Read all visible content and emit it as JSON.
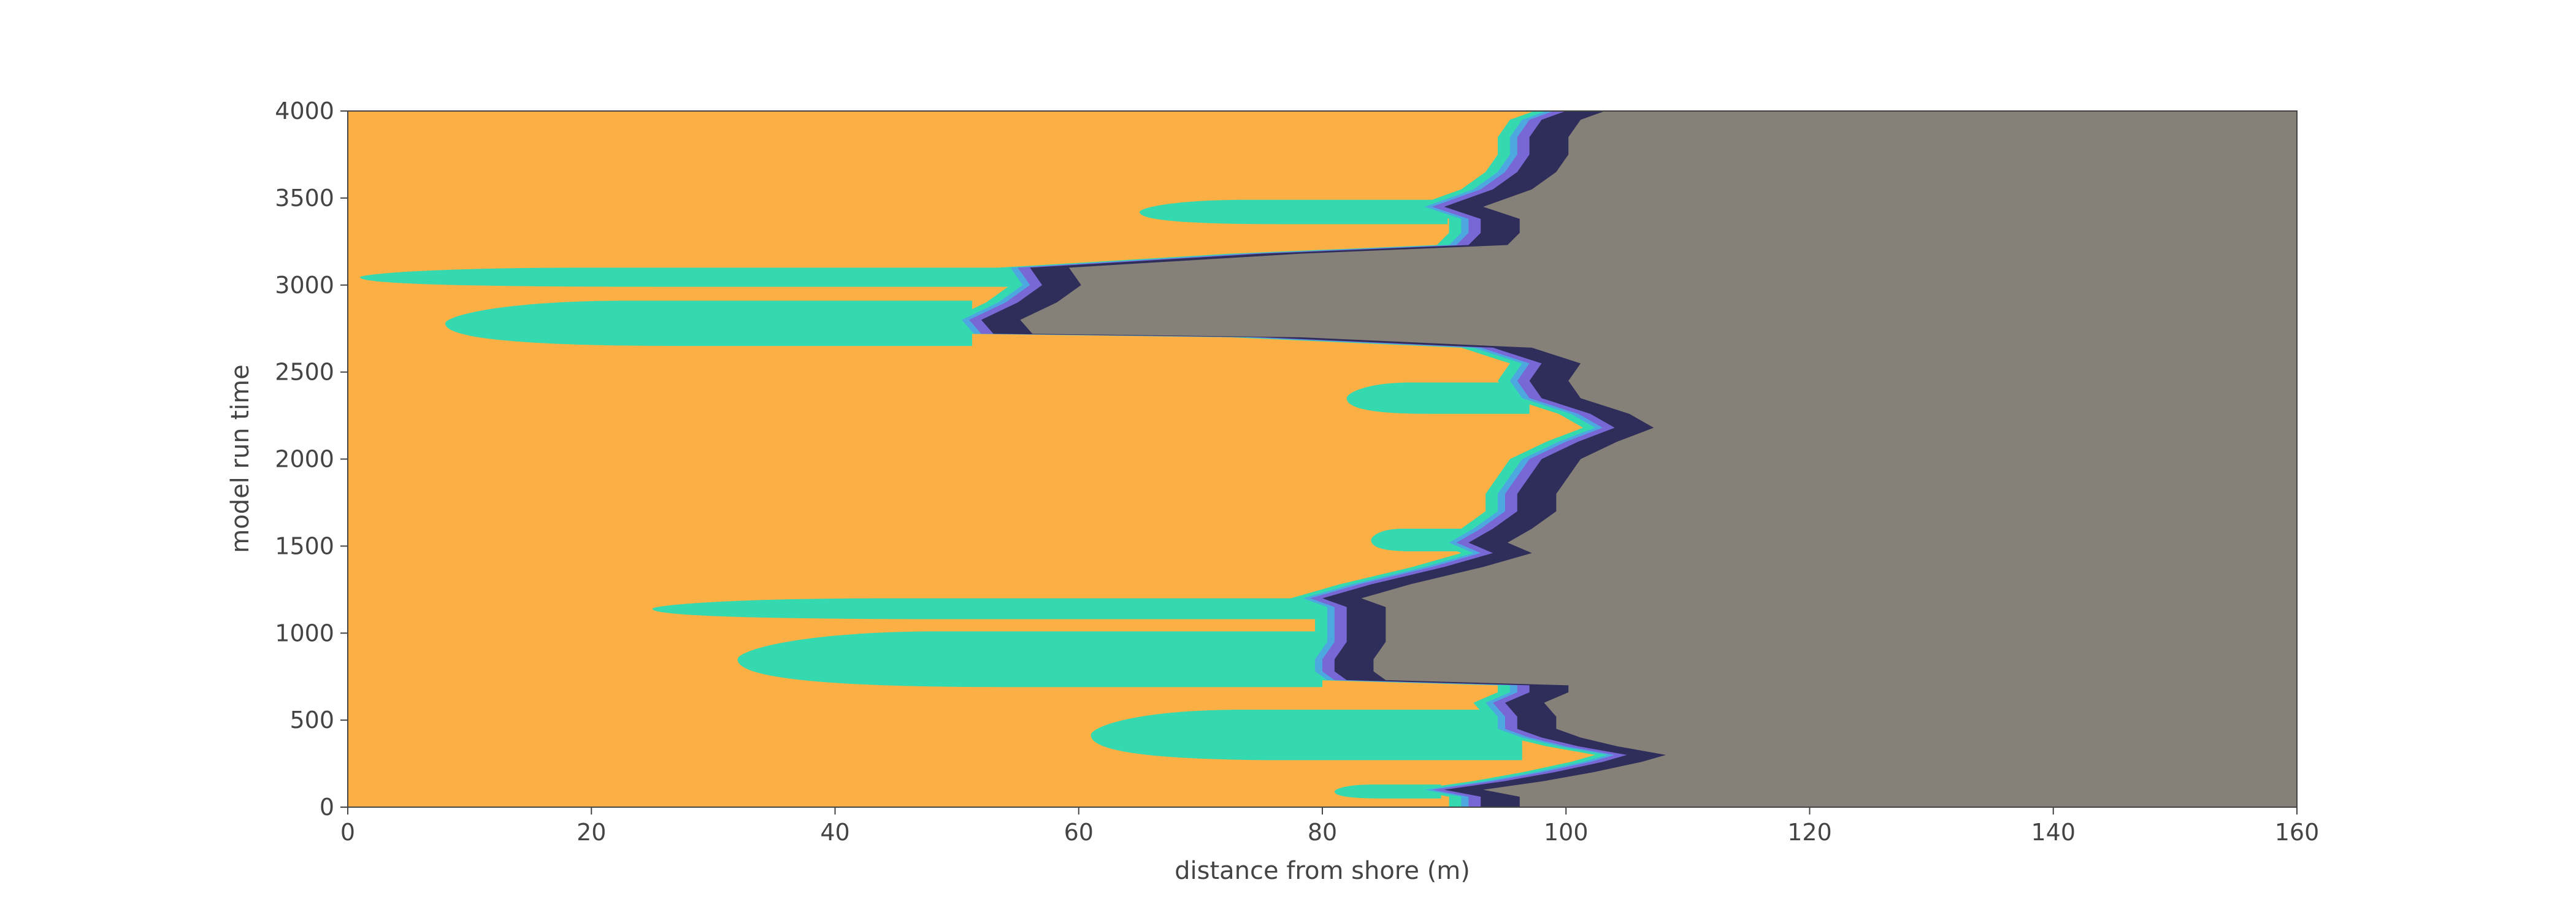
{
  "chart_data": {
    "type": "area",
    "title": "",
    "xlabel": "distance from shore (m)",
    "ylabel": "model run time",
    "xlim": [
      0,
      160
    ],
    "ylim": [
      0,
      4000
    ],
    "xticks": [
      "0",
      "20",
      "40",
      "60",
      "80",
      "100",
      "120",
      "140",
      "160"
    ],
    "yticks": [
      "0",
      "500",
      "1000",
      "1500",
      "2000",
      "2500",
      "3000",
      "3500",
      "4000"
    ],
    "grid": false,
    "legend": "none",
    "colors": {
      "background_orange": "#fcaf45",
      "land_grey": "#858078",
      "dark_band": "#2f2d5a",
      "purple_band": "#7768d6",
      "blue_band": "#4ea8e0",
      "teal_band": "#34d9b0",
      "axis": "#444444"
    },
    "series": [
      {
        "values": [
          [
            0,
            93
          ],
          [
            60,
            93
          ],
          [
            100,
            90
          ],
          [
            150,
            95
          ],
          [
            200,
            99
          ],
          [
            260,
            103
          ],
          [
            300,
            105
          ],
          [
            350,
            101
          ],
          [
            400,
            98
          ],
          [
            450,
            96
          ],
          [
            520,
            96
          ],
          [
            600,
            95
          ],
          [
            660,
            97
          ],
          [
            700,
            97
          ],
          [
            730,
            82
          ],
          [
            780,
            81
          ],
          [
            850,
            81
          ],
          [
            950,
            82
          ],
          [
            1050,
            82
          ],
          [
            1150,
            82
          ],
          [
            1200,
            80
          ],
          [
            1280,
            84
          ],
          [
            1380,
            90
          ],
          [
            1460,
            94
          ],
          [
            1520,
            92
          ],
          [
            1600,
            94
          ],
          [
            1700,
            96
          ],
          [
            1800,
            96
          ],
          [
            1900,
            97
          ],
          [
            2000,
            98
          ],
          [
            2100,
            101
          ],
          [
            2180,
            104
          ],
          [
            2260,
            102
          ],
          [
            2350,
            98
          ],
          [
            2450,
            97
          ],
          [
            2550,
            98
          ],
          [
            2640,
            94
          ],
          [
            2700,
            75
          ],
          [
            2720,
            53
          ],
          [
            2800,
            52
          ],
          [
            2900,
            55
          ],
          [
            3000,
            57
          ],
          [
            3100,
            56
          ],
          [
            3180,
            75
          ],
          [
            3230,
            92
          ],
          [
            3300,
            93
          ],
          [
            3380,
            93
          ],
          [
            3450,
            90
          ],
          [
            3550,
            94
          ],
          [
            3650,
            96
          ],
          [
            3750,
            97
          ],
          [
            3850,
            97
          ],
          [
            3950,
            98
          ],
          [
            4000,
            100
          ]
        ]
      }
    ],
    "tongues": [
      {
        "y_bottom": 50,
        "y_top": 130,
        "x_tip": 81
      },
      {
        "y_bottom": 270,
        "y_top": 560,
        "x_tip": 61
      },
      {
        "y_bottom": 690,
        "y_top": 1010,
        "x_tip": 32
      },
      {
        "y_bottom": 1080,
        "y_top": 1200,
        "x_tip": 25
      },
      {
        "y_bottom": 1470,
        "y_top": 1600,
        "x_tip": 84
      },
      {
        "y_bottom": 2260,
        "y_top": 2440,
        "x_tip": 82
      },
      {
        "y_bottom": 2650,
        "y_top": 2910,
        "x_tip": 8
      },
      {
        "y_bottom": 2990,
        "y_top": 3100,
        "x_tip": 1
      },
      {
        "y_bottom": 3350,
        "y_top": 3490,
        "x_tip": 65
      }
    ]
  }
}
